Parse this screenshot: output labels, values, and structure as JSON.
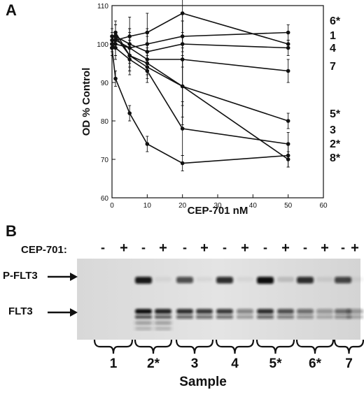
{
  "panel_a": {
    "letter": "A",
    "chart_data": {
      "type": "line",
      "xlabel": "CEP-701 nM",
      "ylabel": "OD % Control",
      "xlim": [
        0,
        60
      ],
      "ylim": [
        60,
        110
      ],
      "xticks": [
        0,
        10,
        20,
        30,
        40,
        50,
        60
      ],
      "yticks": [
        60,
        70,
        80,
        90,
        100,
        110
      ],
      "grid": false,
      "x": [
        0,
        1,
        5,
        10,
        20,
        50
      ],
      "series": [
        {
          "name": "6*",
          "values": [
            99,
            101,
            102,
            103,
            108,
            100
          ],
          "errors": [
            2,
            4,
            5,
            5,
            5,
            1
          ]
        },
        {
          "name": "1",
          "values": [
            99,
            101,
            99,
            100,
            102,
            103
          ],
          "errors": [
            2,
            4,
            5,
            4,
            4,
            2
          ]
        },
        {
          "name": "4",
          "values": [
            100,
            102,
            100,
            98,
            100,
            99
          ],
          "errors": [
            2,
            3,
            4,
            4,
            6,
            2
          ]
        },
        {
          "name": "7",
          "values": [
            100,
            100,
            99,
            96,
            96,
            93
          ],
          "errors": [
            2,
            3,
            4,
            3,
            12,
            3
          ]
        },
        {
          "name": "5*",
          "values": [
            101,
            103,
            97,
            94,
            89,
            80
          ],
          "errors": [
            2,
            3,
            4,
            3,
            10,
            2
          ]
        },
        {
          "name": "3",
          "values": [
            100,
            99,
            96,
            93,
            78,
            74
          ],
          "errors": [
            2,
            3,
            4,
            3,
            7,
            3
          ]
        },
        {
          "name": "2*",
          "values": [
            102,
            102,
            97,
            95,
            89,
            70
          ],
          "errors": [
            2,
            3,
            4,
            3,
            8,
            2
          ]
        },
        {
          "name": "8*",
          "values": [
            99,
            91,
            82,
            74,
            69,
            71
          ],
          "errors": [
            2,
            2,
            2,
            2,
            2,
            3
          ]
        }
      ]
    }
  },
  "panel_b": {
    "letter": "B",
    "treatment_label": "CEP-701:",
    "lane_signs": [
      "-",
      "+",
      "-",
      "+",
      "-",
      "+",
      "-",
      "+",
      "-",
      "+",
      "-",
      "+",
      "-",
      "+"
    ],
    "bands": [
      {
        "label": "P-FLT3"
      },
      {
        "label": "FLT3"
      }
    ],
    "samples": [
      "1",
      "2*",
      "3",
      "4",
      "5*",
      "6*",
      "7"
    ],
    "xlabel": "Sample"
  }
}
